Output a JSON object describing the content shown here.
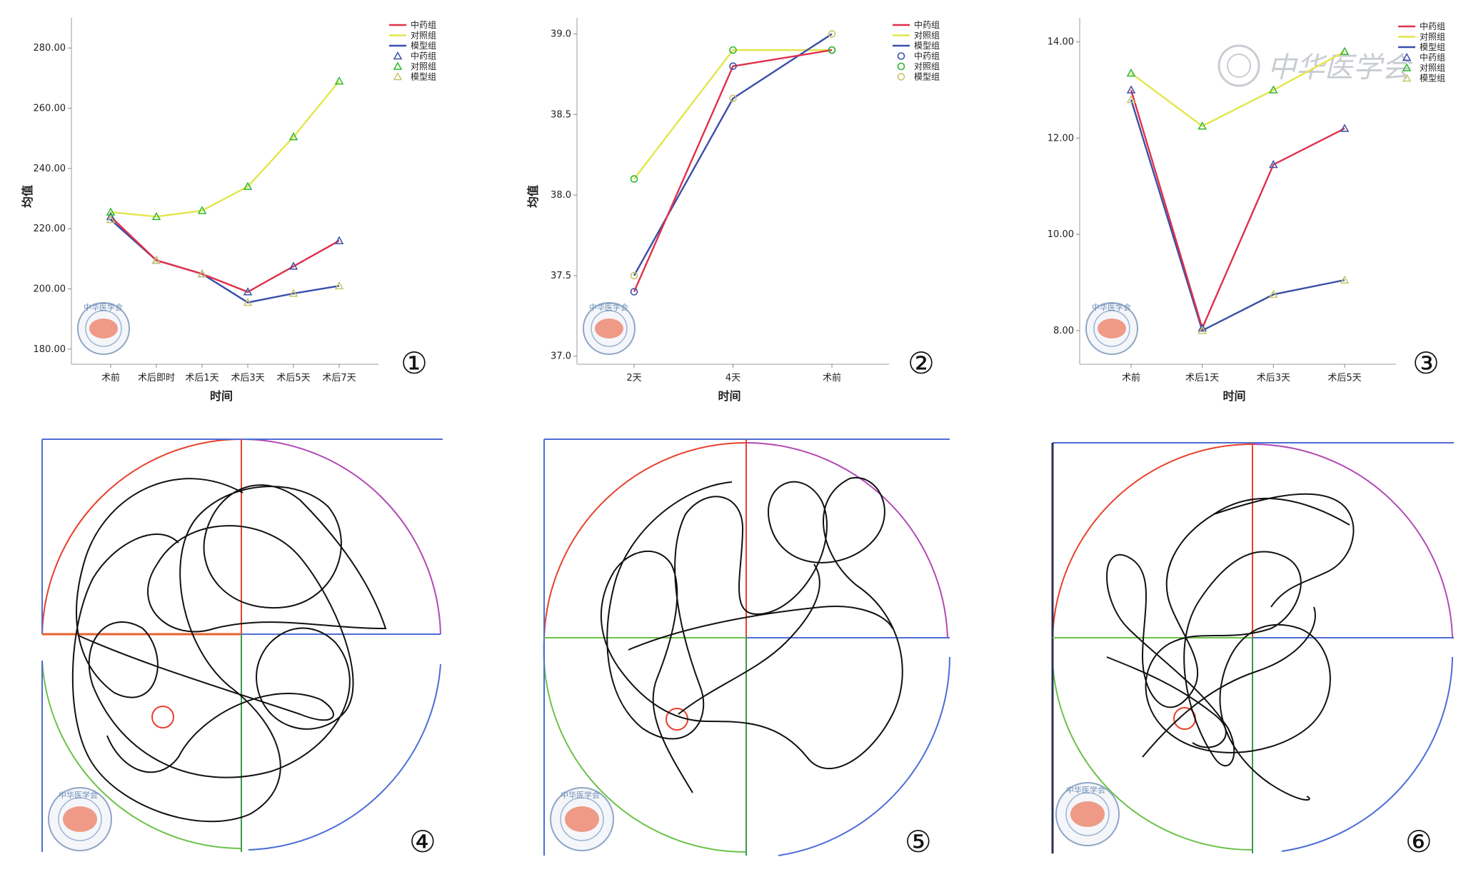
{
  "colors": {
    "zhongyao": "#e0304a",
    "duizhao": "#e3e64a",
    "moxing": "#3a4fa8",
    "marker_zhongyao": "#3a4fa8",
    "marker_duizhao": "#2eb82e",
    "marker_moxing": "#c8c46a",
    "axis": "#bdbdbd",
    "maze_red": "#e8412c",
    "maze_purple": "#b24ab4",
    "maze_blue": "#4d6ed6",
    "maze_green": "#6cc24a",
    "platform": "#e8412c",
    "track": "#111111"
  },
  "watermark": "中华医学会",
  "logo_text": "中华医学会",
  "chart_data": [
    {
      "panel": "①",
      "type": "line",
      "xlabel": "时间",
      "ylabel": "均值",
      "categories": [
        "术前",
        "术后即时",
        "术后1天",
        "术后3天",
        "术后5天",
        "术后7天"
      ],
      "ylim": [
        175,
        290
      ],
      "yticks": [
        "180.00",
        "200.00",
        "220.00",
        "240.00",
        "260.00",
        "280.00"
      ],
      "ytick_values": [
        180,
        200,
        220,
        240,
        260,
        280
      ],
      "marker": "triangle",
      "legend": [
        "中药组",
        "对照组",
        "模型组",
        "中药组",
        "对照组",
        "模型组"
      ],
      "legend_position": "top-right",
      "series": [
        {
          "name": "中药组",
          "values": [
            224,
            209.5,
            205,
            199,
            207.5,
            216
          ]
        },
        {
          "name": "对照组",
          "values": [
            225.5,
            224,
            226,
            234,
            250.5,
            269
          ]
        },
        {
          "name": "模型组",
          "values": [
            223,
            209.5,
            205,
            195.5,
            198.5,
            201
          ]
        }
      ]
    },
    {
      "panel": "②",
      "type": "line",
      "xlabel": "时间",
      "ylabel": "均值",
      "categories": [
        "2天",
        "4天",
        "术前"
      ],
      "ylim": [
        36.95,
        39.1
      ],
      "yticks": [
        "37.0",
        "37.5",
        "38.0",
        "38.5",
        "39.0"
      ],
      "ytick_values": [
        37.0,
        37.5,
        38.0,
        38.5,
        39.0
      ],
      "marker": "circle",
      "legend": [
        "中药组",
        "对照组",
        "模型组",
        "中药组",
        "对照组",
        "模型组"
      ],
      "legend_position": "top-right",
      "series": [
        {
          "name": "中药组",
          "values": [
            37.4,
            38.8,
            38.9
          ]
        },
        {
          "name": "对照组",
          "values": [
            38.1,
            38.9,
            38.9
          ]
        },
        {
          "name": "模型组",
          "values": [
            37.5,
            38.6,
            39.0
          ]
        }
      ]
    },
    {
      "panel": "③",
      "type": "line",
      "xlabel": "时间",
      "ylabel": "",
      "categories": [
        "术前",
        "术后1天",
        "术后3天",
        "术后5天"
      ],
      "ylim": [
        7.3,
        14.5
      ],
      "yticks": [
        "8.00",
        "10.00",
        "12.00",
        "14.00"
      ],
      "ytick_values": [
        8,
        10,
        12,
        14
      ],
      "marker": "triangle",
      "legend": [
        "中药组",
        "对照组",
        "模型组",
        "中药组",
        "对照组",
        "模型组"
      ],
      "legend_position": "top-right",
      "series": [
        {
          "name": "中药组",
          "values": [
            13.0,
            8.05,
            11.45,
            12.2
          ]
        },
        {
          "name": "对照组",
          "values": [
            13.35,
            12.25,
            13.0,
            13.8
          ]
        },
        {
          "name": "模型组",
          "values": [
            12.8,
            8.0,
            8.75,
            9.05
          ]
        }
      ]
    }
  ],
  "maze_panels": [
    {
      "panel": "④"
    },
    {
      "panel": "⑤"
    },
    {
      "panel": "⑥"
    }
  ]
}
